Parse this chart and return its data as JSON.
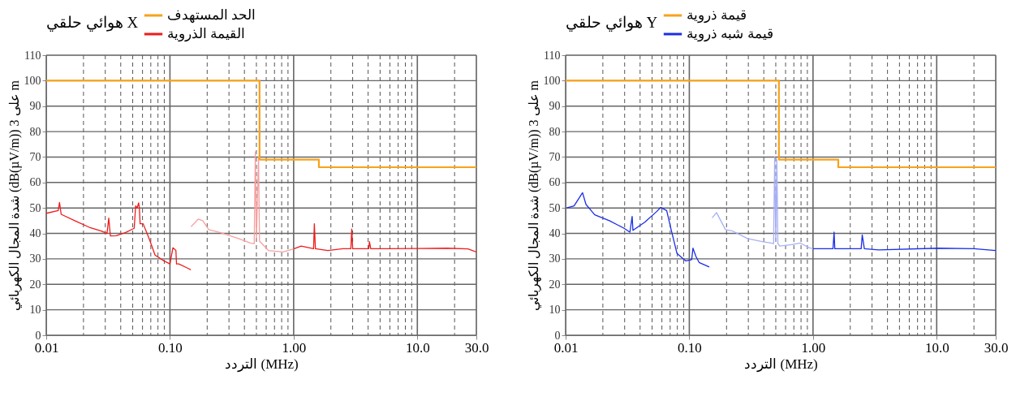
{
  "chart_data": [
    {
      "type": "line",
      "legend_title": "هوائي حلقي X",
      "xlabel": "التردد (MHz)",
      "ylabel": "شدة المجال الكهربائي (dB(µV/m)) على 3 m",
      "log": "x",
      "grid": true,
      "legend": "top",
      "xlim": [
        0.01,
        30
      ],
      "ylim": [
        0,
        110
      ],
      "yticks": [
        0,
        10,
        20,
        30,
        40,
        50,
        60,
        70,
        80,
        90,
        100,
        110
      ],
      "xticks": [
        {
          "value": 0.01,
          "label": "0.01"
        },
        {
          "value": 0.02,
          "label": null
        },
        {
          "value": 0.03,
          "label": null
        },
        {
          "value": 0.04,
          "label": null
        },
        {
          "value": 0.05,
          "label": null
        },
        {
          "value": 0.06,
          "label": null
        },
        {
          "value": 0.07,
          "label": null
        },
        {
          "value": 0.08,
          "label": null
        },
        {
          "value": 0.09,
          "label": null
        },
        {
          "value": 0.1,
          "label": "0.10"
        },
        {
          "value": 0.2,
          "label": null
        },
        {
          "value": 0.3,
          "label": null
        },
        {
          "value": 0.4,
          "label": null
        },
        {
          "value": 0.5,
          "label": null
        },
        {
          "value": 0.6,
          "label": null
        },
        {
          "value": 0.7,
          "label": null
        },
        {
          "value": 0.8,
          "label": null
        },
        {
          "value": 0.9,
          "label": null
        },
        {
          "value": 1,
          "label": "1.00"
        },
        {
          "value": 2,
          "label": null
        },
        {
          "value": 3,
          "label": null
        },
        {
          "value": 4,
          "label": null
        },
        {
          "value": 5,
          "label": null
        },
        {
          "value": 6,
          "label": null
        },
        {
          "value": 7,
          "label": null
        },
        {
          "value": 8,
          "label": null
        },
        {
          "value": 9,
          "label": null
        },
        {
          "value": 10,
          "label": "10.0"
        },
        {
          "value": 20,
          "label": null
        },
        {
          "value": 30,
          "label": "30.0"
        }
      ],
      "series": [
        {
          "name": "الحد المستهدف",
          "type": "step",
          "color": "#f7a21b",
          "x": [
            0.01,
            0.53,
            1.6,
            30
          ],
          "values": [
            100,
            69,
            66,
            66
          ]
        },
        {
          "name": "القيمة الذروية",
          "color": "#ee1c1c",
          "x": [
            0.01,
            0.0125,
            0.0128,
            0.0132,
            0.017,
            0.0223,
            0.0279,
            0.031,
            0.032,
            0.033,
            0.0368,
            0.0435,
            0.0514,
            0.0528,
            0.0543,
            0.0558,
            0.0566,
            0.0574,
            0.0607,
            0.0678,
            0.0758,
            0.0895,
            0.1,
            0.1057,
            0.1117,
            0.113,
            0.118,
            0.1396,
            0.1475
          ],
          "values": [
            47.9,
            49,
            52.2,
            47.5,
            45,
            42.4,
            40.9,
            40,
            46,
            39,
            39.1,
            40.3,
            42,
            50.8,
            50,
            52,
            50,
            43.8,
            43.8,
            38,
            31.5,
            29.2,
            28,
            34.4,
            33.3,
            28,
            28,
            26.3,
            25.7
          ]
        },
        {
          "type": "line",
          "color": "#f7a0a0",
          "x": [
            0.148,
            0.169,
            0.184,
            0.206,
            0.257,
            0.358,
            0.447,
            0.48,
            0.49,
            0.5,
            0.52,
            0.53,
            0.624,
            0.82,
            1.0
          ],
          "values": [
            42.6,
            45.6,
            45,
            41.5,
            40.3,
            38,
            36.2,
            36,
            72,
            38,
            70,
            37,
            33.3,
            32.7,
            33.9
          ]
        },
        {
          "type": "line",
          "color": "#ee1c1c",
          "x": [
            1.0,
            1.15,
            1.45,
            1.47,
            1.5,
            1.89,
            2.5,
            2.9,
            2.95,
            3.0,
            4.05,
            4.1,
            4.2,
            5.7,
            10,
            17.4,
            25.7,
            30
          ],
          "values": [
            33.9,
            35,
            34,
            43.8,
            34,
            33.3,
            34,
            34,
            41.7,
            34,
            34,
            36.8,
            34,
            34,
            34.1,
            34.2,
            33.9,
            32.7
          ]
        }
      ]
    },
    {
      "type": "line",
      "legend_title": "هوائي حلقي Y",
      "xlabel": "التردد (MHz)",
      "ylabel": "شدة المجال الكهربائي (dB(µV/m)) على 3 m",
      "log": "x",
      "grid": true,
      "legend": "top",
      "xlim": [
        0.01,
        30
      ],
      "ylim": [
        0,
        110
      ],
      "yticks": [
        0,
        10,
        20,
        30,
        40,
        50,
        60,
        70,
        80,
        90,
        100,
        110
      ],
      "xticks": [
        {
          "value": 0.01,
          "label": "0.01"
        },
        {
          "value": 0.02,
          "label": null
        },
        {
          "value": 0.03,
          "label": null
        },
        {
          "value": 0.04,
          "label": null
        },
        {
          "value": 0.05,
          "label": null
        },
        {
          "value": 0.06,
          "label": null
        },
        {
          "value": 0.07,
          "label": null
        },
        {
          "value": 0.08,
          "label": null
        },
        {
          "value": 0.09,
          "label": null
        },
        {
          "value": 0.1,
          "label": "0.10"
        },
        {
          "value": 0.2,
          "label": null
        },
        {
          "value": 0.3,
          "label": null
        },
        {
          "value": 0.4,
          "label": null
        },
        {
          "value": 0.5,
          "label": null
        },
        {
          "value": 0.6,
          "label": null
        },
        {
          "value": 0.7,
          "label": null
        },
        {
          "value": 0.8,
          "label": null
        },
        {
          "value": 0.9,
          "label": null
        },
        {
          "value": 1,
          "label": "1.00"
        },
        {
          "value": 2,
          "label": null
        },
        {
          "value": 3,
          "label": null
        },
        {
          "value": 4,
          "label": null
        },
        {
          "value": 5,
          "label": null
        },
        {
          "value": 6,
          "label": null
        },
        {
          "value": 7,
          "label": null
        },
        {
          "value": 8,
          "label": null
        },
        {
          "value": 9,
          "label": null
        },
        {
          "value": 10,
          "label": "10.0"
        },
        {
          "value": 20,
          "label": null
        },
        {
          "value": 30,
          "label": "30.0"
        }
      ],
      "series": [
        {
          "name": "قيمة ذروية",
          "type": "step",
          "color": "#f7a21b",
          "x": [
            0.01,
            0.53,
            1.6,
            30
          ],
          "values": [
            100,
            69,
            66,
            66
          ]
        },
        {
          "name": "قيمة شبه ذروية",
          "color": "#1a2ee8",
          "x": [
            0.0102,
            0.0117,
            0.0137,
            0.0146,
            0.0172,
            0.0226,
            0.0297,
            0.0331,
            0.0345,
            0.035,
            0.0436,
            0.0542,
            0.0588,
            0.0656,
            0.0713,
            0.0795,
            0.0937,
            0.1045,
            0.107,
            0.113,
            0.12,
            0.145
          ],
          "values": [
            50,
            50.8,
            56,
            51.4,
            47.3,
            45,
            42,
            40.5,
            46.7,
            41.2,
            44.4,
            48.5,
            50.2,
            49,
            41.5,
            32.1,
            29.2,
            29.7,
            34.2,
            31,
            28.6,
            26.8
          ]
        },
        {
          "type": "line",
          "color": "#a8b0f5",
          "x": [
            0.153,
            0.166,
            0.196,
            0.225,
            0.295,
            0.388,
            0.457,
            0.48,
            0.49,
            0.5,
            0.51,
            0.52,
            0.54,
            0.67,
            0.79,
            0.93,
            1.0
          ],
          "values": [
            46.1,
            48.2,
            41.5,
            40.9,
            38,
            36.8,
            36.2,
            36,
            70,
            37,
            69,
            36,
            35,
            35.6,
            36.2,
            34.4,
            34
          ]
        },
        {
          "type": "line",
          "color": "#1a2ee8",
          "x": [
            1.0,
            1.45,
            1.48,
            1.5,
            2.45,
            2.5,
            2.6,
            3.4,
            10.3,
            20,
            30
          ],
          "values": [
            34,
            34,
            40.5,
            34,
            34,
            39.4,
            34,
            33.5,
            34.2,
            34,
            33.3
          ]
        }
      ]
    }
  ]
}
